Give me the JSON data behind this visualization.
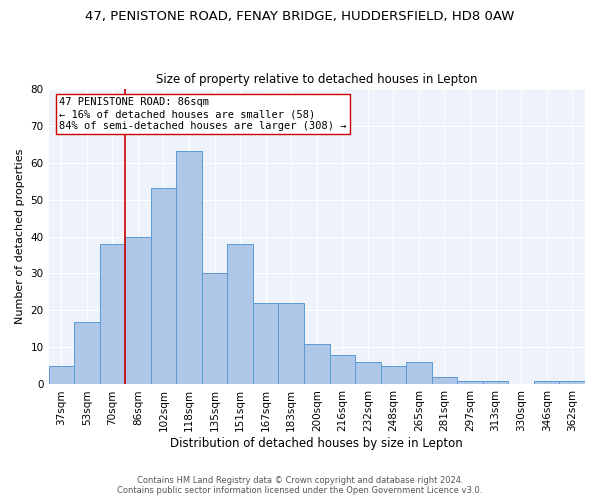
{
  "title_line1": "47, PENISTONE ROAD, FENAY BRIDGE, HUDDERSFIELD, HD8 0AW",
  "title_line2": "Size of property relative to detached houses in Lepton",
  "xlabel": "Distribution of detached houses by size in Lepton",
  "ylabel": "Number of detached properties",
  "bar_labels": [
    "37sqm",
    "53sqm",
    "70sqm",
    "86sqm",
    "102sqm",
    "118sqm",
    "135sqm",
    "151sqm",
    "167sqm",
    "183sqm",
    "200sqm",
    "216sqm",
    "232sqm",
    "248sqm",
    "265sqm",
    "281sqm",
    "297sqm",
    "313sqm",
    "330sqm",
    "346sqm",
    "362sqm"
  ],
  "bar_values": [
    5,
    17,
    38,
    40,
    53,
    63,
    30,
    38,
    22,
    22,
    11,
    8,
    6,
    5,
    6,
    2,
    1,
    1,
    0,
    1,
    1
  ],
  "bar_color": "#aec6e8",
  "bar_edgecolor": "#5b9bd5",
  "background_color": "#eef2fa",
  "grid_color": "#ffffff",
  "vline_color": "#cc0000",
  "annotation_text": "47 PENISTONE ROAD: 86sqm\n← 16% of detached houses are smaller (58)\n84% of semi-detached houses are larger (308) →",
  "annotation_box_edgecolor": "#cc0000",
  "annotation_fontsize": 7.5,
  "ylim": [
    0,
    80
  ],
  "yticks": [
    0,
    10,
    20,
    30,
    40,
    50,
    60,
    70,
    80
  ],
  "footer_line1": "Contains HM Land Registry data © Crown copyright and database right 2024.",
  "footer_line2": "Contains public sector information licensed under the Open Government Licence v3.0.",
  "title1_fontsize": 9.5,
  "title2_fontsize": 8.5,
  "xlabel_fontsize": 8.5,
  "ylabel_fontsize": 8.0,
  "tick_fontsize": 7.5,
  "footer_fontsize": 6.0
}
